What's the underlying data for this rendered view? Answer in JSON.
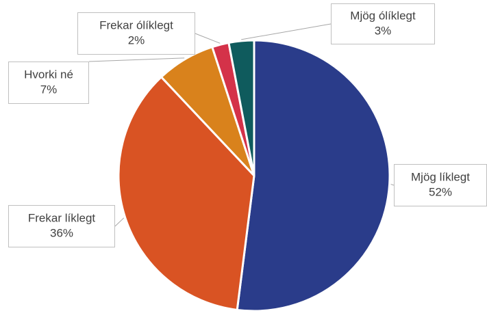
{
  "chart_data": {
    "type": "pie",
    "categories": [
      "Mjög líklegt",
      "Frekar líklegt",
      "Hvorki né",
      "Frekar ólíklegt",
      "Mjög ólíklegt"
    ],
    "values": [
      52,
      36,
      7,
      2,
      3
    ],
    "value_labels": [
      "52%",
      "36%",
      "7%",
      "2%",
      "3%"
    ],
    "colors": [
      "#2a3c8a",
      "#d95323",
      "#d9821c",
      "#d43249",
      "#0f5b5d"
    ]
  }
}
